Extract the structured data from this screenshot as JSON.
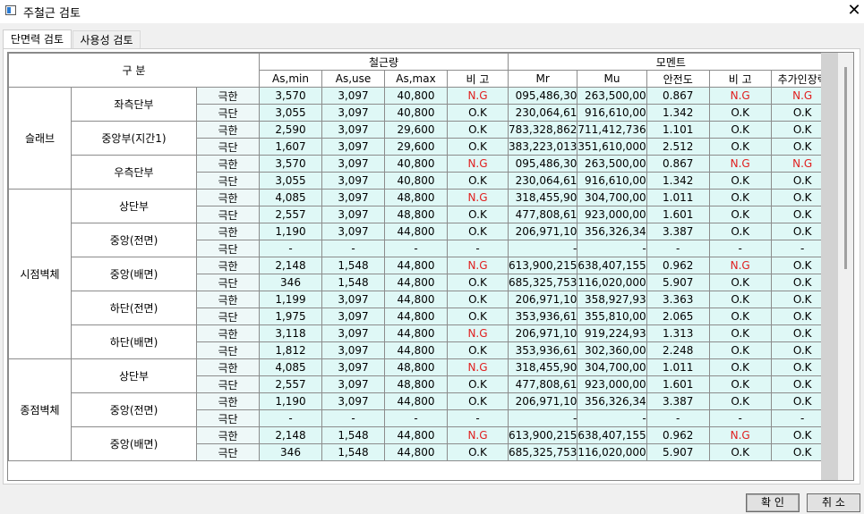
{
  "window": {
    "title": "주철근 검토"
  },
  "tabs": [
    {
      "label": "단면력 검토",
      "active": true
    },
    {
      "label": "사용성 검토",
      "active": false
    }
  ],
  "table": {
    "header_group": "구 분",
    "rebar_group": "철근량",
    "moment_group": "모멘트",
    "columns": [
      "As,min",
      "As,use",
      "As,max",
      "비 고",
      "Mr",
      "Mu",
      "안전도",
      "비 고",
      "추가인장력"
    ],
    "sections": [
      {
        "name": "슬래브",
        "parts": [
          {
            "name": "좌측단부",
            "rows": [
              {
                "kind": "극한",
                "cells": [
                  "3,570",
                  "3,097",
                  "40,800",
                  "N.G",
                  "095,486,30",
                  "263,500,00",
                  "0.867",
                  "N.G",
                  "N.G"
                ]
              },
              {
                "kind": "극단",
                "cells": [
                  "3,055",
                  "3,097",
                  "40,800",
                  "O.K",
                  "230,064,61",
                  "916,610,00",
                  "1.342",
                  "O.K",
                  "O.K"
                ]
              }
            ]
          },
          {
            "name": "중앙부(지간1)",
            "rows": [
              {
                "kind": "극한",
                "cells": [
                  "2,590",
                  "3,097",
                  "29,600",
                  "O.K",
                  "783,328,862",
                  "711,412,736",
                  "1.101",
                  "O.K",
                  "O.K"
                ]
              },
              {
                "kind": "극단",
                "cells": [
                  "1,607",
                  "3,097",
                  "29,600",
                  "O.K",
                  "383,223,013",
                  "351,610,000",
                  "2.512",
                  "O.K",
                  "O.K"
                ]
              }
            ]
          },
          {
            "name": "우측단부",
            "rows": [
              {
                "kind": "극한",
                "cells": [
                  "3,570",
                  "3,097",
                  "40,800",
                  "N.G",
                  "095,486,30",
                  "263,500,00",
                  "0.867",
                  "N.G",
                  "N.G"
                ]
              },
              {
                "kind": "극단",
                "cells": [
                  "3,055",
                  "3,097",
                  "40,800",
                  "O.K",
                  "230,064,61",
                  "916,610,00",
                  "1.342",
                  "O.K",
                  "O.K"
                ]
              }
            ]
          }
        ]
      },
      {
        "name": "시점벽체",
        "parts": [
          {
            "name": "상단부",
            "rows": [
              {
                "kind": "극한",
                "cells": [
                  "4,085",
                  "3,097",
                  "48,800",
                  "N.G",
                  "318,455,90",
                  "304,700,00",
                  "1.011",
                  "O.K",
                  "O.K"
                ]
              },
              {
                "kind": "극단",
                "cells": [
                  "2,557",
                  "3,097",
                  "48,800",
                  "O.K",
                  "477,808,61",
                  "923,000,00",
                  "1.601",
                  "O.K",
                  "O.K"
                ]
              }
            ]
          },
          {
            "name": "중앙(전면)",
            "rows": [
              {
                "kind": "극한",
                "cells": [
                  "1,190",
                  "3,097",
                  "44,800",
                  "O.K",
                  "206,971,10",
                  "356,326,34",
                  "3.387",
                  "O.K",
                  "O.K"
                ]
              },
              {
                "kind": "극단",
                "cells": [
                  "-",
                  "-",
                  "-",
                  "-",
                  "-",
                  "-",
                  "-",
                  "-",
                  "-"
                ]
              }
            ]
          },
          {
            "name": "중앙(배면)",
            "rows": [
              {
                "kind": "극한",
                "cells": [
                  "2,148",
                  "1,548",
                  "44,800",
                  "N.G",
                  "613,900,215",
                  "638,407,155",
                  "0.962",
                  "N.G",
                  "O.K"
                ]
              },
              {
                "kind": "극단",
                "cells": [
                  "346",
                  "1,548",
                  "44,800",
                  "O.K",
                  "685,325,753",
                  "116,020,000",
                  "5.907",
                  "O.K",
                  "O.K"
                ]
              }
            ]
          },
          {
            "name": "하단(전면)",
            "rows": [
              {
                "kind": "극한",
                "cells": [
                  "1,199",
                  "3,097",
                  "44,800",
                  "O.K",
                  "206,971,10",
                  "358,927,93",
                  "3.363",
                  "O.K",
                  "O.K"
                ]
              },
              {
                "kind": "극단",
                "cells": [
                  "1,975",
                  "3,097",
                  "44,800",
                  "O.K",
                  "353,936,61",
                  "355,810,00",
                  "2.065",
                  "O.K",
                  "O.K"
                ]
              }
            ]
          },
          {
            "name": "하단(배면)",
            "rows": [
              {
                "kind": "극한",
                "cells": [
                  "3,118",
                  "3,097",
                  "44,800",
                  "N.G",
                  "206,971,10",
                  "919,224,93",
                  "1.313",
                  "O.K",
                  "O.K"
                ]
              },
              {
                "kind": "극단",
                "cells": [
                  "1,812",
                  "3,097",
                  "44,800",
                  "O.K",
                  "353,936,61",
                  "302,360,00",
                  "2.248",
                  "O.K",
                  "O.K"
                ]
              }
            ]
          }
        ]
      },
      {
        "name": "종점벽체",
        "parts": [
          {
            "name": "상단부",
            "rows": [
              {
                "kind": "극한",
                "cells": [
                  "4,085",
                  "3,097",
                  "48,800",
                  "N.G",
                  "318,455,90",
                  "304,700,00",
                  "1.011",
                  "O.K",
                  "O.K"
                ]
              },
              {
                "kind": "극단",
                "cells": [
                  "2,557",
                  "3,097",
                  "48,800",
                  "O.K",
                  "477,808,61",
                  "923,000,00",
                  "1.601",
                  "O.K",
                  "O.K"
                ]
              }
            ]
          },
          {
            "name": "중앙(전면)",
            "rows": [
              {
                "kind": "극한",
                "cells": [
                  "1,190",
                  "3,097",
                  "44,800",
                  "O.K",
                  "206,971,10",
                  "356,326,34",
                  "3.387",
                  "O.K",
                  "O.K"
                ]
              },
              {
                "kind": "극단",
                "cells": [
                  "-",
                  "-",
                  "-",
                  "-",
                  "-",
                  "-",
                  "-",
                  "-",
                  "-"
                ]
              }
            ]
          },
          {
            "name": "중앙(배면)",
            "rows": [
              {
                "kind": "극한",
                "cells": [
                  "2,148",
                  "1,548",
                  "44,800",
                  "N.G",
                  "613,900,215",
                  "638,407,155",
                  "0.962",
                  "N.G",
                  "O.K"
                ]
              },
              {
                "kind": "극단",
                "cells": [
                  "346",
                  "1,548",
                  "44,800",
                  "O.K",
                  "685,325,753",
                  "116,020,000",
                  "5.907",
                  "O.K",
                  "O.K"
                ]
              }
            ]
          }
        ]
      }
    ]
  },
  "buttons": {
    "ok": "확 인",
    "cancel": "취 소"
  },
  "colors": {
    "ng_text": "#e02020",
    "cell_bg": "#dff8f6",
    "scroll_bg": "#d2d2d2"
  }
}
